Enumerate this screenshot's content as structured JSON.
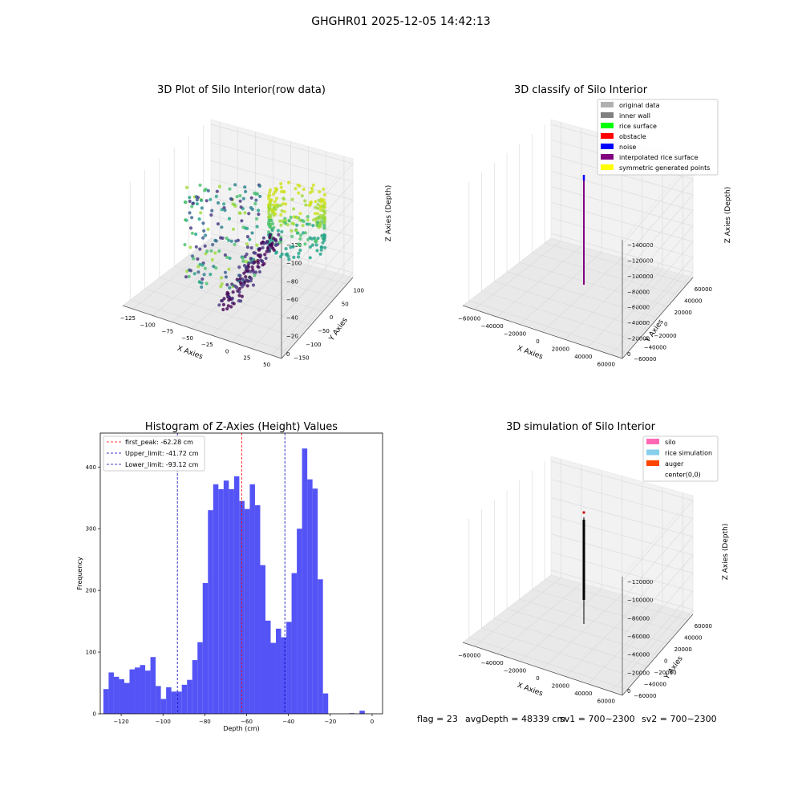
{
  "figure": {
    "suptitle": "GHGHR01 2025-12-05 14:42:13",
    "status_text": {
      "flag": "flag = 23",
      "avg_depth": "avgDepth = 48339 cm",
      "sv1": "sv1 = 700~2300",
      "sv2": "sv2 = 700~2300"
    }
  },
  "colors": {
    "hist_bar": "#4b4bf5",
    "first_peak_line": "#ff0000",
    "limit_line": "#0000bb",
    "pane_fill": "#f2f2f2",
    "grid": "#d9d9d9"
  },
  "chart_data": [
    {
      "type": "scatter",
      "title": "3D Plot of Silo Interior(row data)",
      "xlabel": "X Axies",
      "ylabel": "Y Axies",
      "zlabel": "Z Axies (Depth)",
      "x_ticks": [
        "−125",
        "−100",
        "−75",
        "−50",
        "−25",
        "0",
        "25",
        "50"
      ],
      "y_ticks": [
        "−150",
        "−100",
        "−50",
        "0",
        "50",
        "100"
      ],
      "z_ticks": [
        "−120",
        "−100",
        "−80",
        "−60",
        "−40",
        "−20",
        "0"
      ],
      "colormap": "viridis",
      "grid": true
    },
    {
      "type": "scatter",
      "title": "3D classify of Silo Interior",
      "xlabel": "X Axies",
      "ylabel": "Y Axies",
      "zlabel": "Z Axies (Depth)",
      "x_ticks": [
        "−60000",
        "−40000",
        "−20000",
        "0",
        "20000",
        "40000",
        "60000"
      ],
      "y_ticks": [
        "−60000",
        "−40000",
        "−20000",
        "0",
        "20000",
        "40000",
        "60000"
      ],
      "z_ticks": [
        "−140000",
        "−120000",
        "−100000",
        "−80000",
        "−60000",
        "−40000",
        "−20000",
        "0"
      ],
      "legend_position": "top-right",
      "legend": [
        {
          "label": "original data",
          "color": "#b0b0b0"
        },
        {
          "label": "inner wall",
          "color": "#808080"
        },
        {
          "label": "rice surface",
          "color": "#00ff00"
        },
        {
          "label": "obstacle",
          "color": "#ff0000"
        },
        {
          "label": "noise",
          "color": "#0000ff"
        },
        {
          "label": "interpolated rice surface",
          "color": "#800080"
        },
        {
          "label": "symmetric generated points",
          "color": "#ffff00"
        }
      ],
      "grid": true
    },
    {
      "type": "bar",
      "title": "Histogram of Z-Axies (Height) Values",
      "xlabel": "Depth (cm)",
      "ylabel": "Frequency",
      "xlim": [
        -130,
        5
      ],
      "ylim": [
        0,
        455
      ],
      "x_ticks": [
        -120,
        -100,
        -80,
        -60,
        -40,
        -20,
        0
      ],
      "x_tick_labels": [
        "−120",
        "−100",
        "−80",
        "−60",
        "−40",
        "−20",
        "0"
      ],
      "y_ticks": [
        0,
        100,
        200,
        300,
        400
      ],
      "bin_start": -128.5,
      "bin_width": 2.5,
      "values": [
        40,
        67,
        60,
        56,
        50,
        72,
        75,
        79,
        70,
        92,
        45,
        24,
        43,
        36,
        36,
        47,
        55,
        87,
        116,
        212,
        330,
        372,
        364,
        378,
        364,
        385,
        345,
        332,
        372,
        338,
        241,
        151,
        115,
        138,
        124,
        149,
        228,
        300,
        430,
        380,
        365,
        218,
        33,
        0,
        0,
        0,
        0,
        1,
        0,
        5
      ],
      "reference_lines": [
        {
          "label": "first_peak: -62.28 cm",
          "x": -62.28,
          "color": "#ff0000"
        },
        {
          "label": "Upper_limit: -41.72 cm",
          "x": -41.72,
          "color": "#0000bb"
        },
        {
          "label": "Lower_limit: -93.12 cm",
          "x": -93.12,
          "color": "#0000bb"
        }
      ],
      "legend_position": "top-left",
      "grid": false
    },
    {
      "type": "scatter",
      "title": "3D simulation of Silo Interior",
      "xlabel": "X Axies",
      "ylabel": "Y Axies",
      "zlabel": "Z Axies (Depth)",
      "x_ticks": [
        "−60000",
        "−40000",
        "−20000",
        "0",
        "20000",
        "40000",
        "60000"
      ],
      "y_ticks": [
        "−60000",
        "−40000",
        "−20000",
        "0",
        "20000",
        "40000",
        "60000"
      ],
      "z_ticks": [
        "−120000",
        "−100000",
        "−80000",
        "−60000",
        "−40000",
        "−20000",
        "0"
      ],
      "legend_position": "top-right",
      "legend": [
        {
          "label": "silo",
          "color": "#ff69b4"
        },
        {
          "label": "rice simulation",
          "color": "#87ceeb"
        },
        {
          "label": "auger",
          "color": "#ff4500"
        },
        {
          "label": "center(0,0)",
          "color": "#ffffff"
        }
      ],
      "grid": true
    }
  ]
}
